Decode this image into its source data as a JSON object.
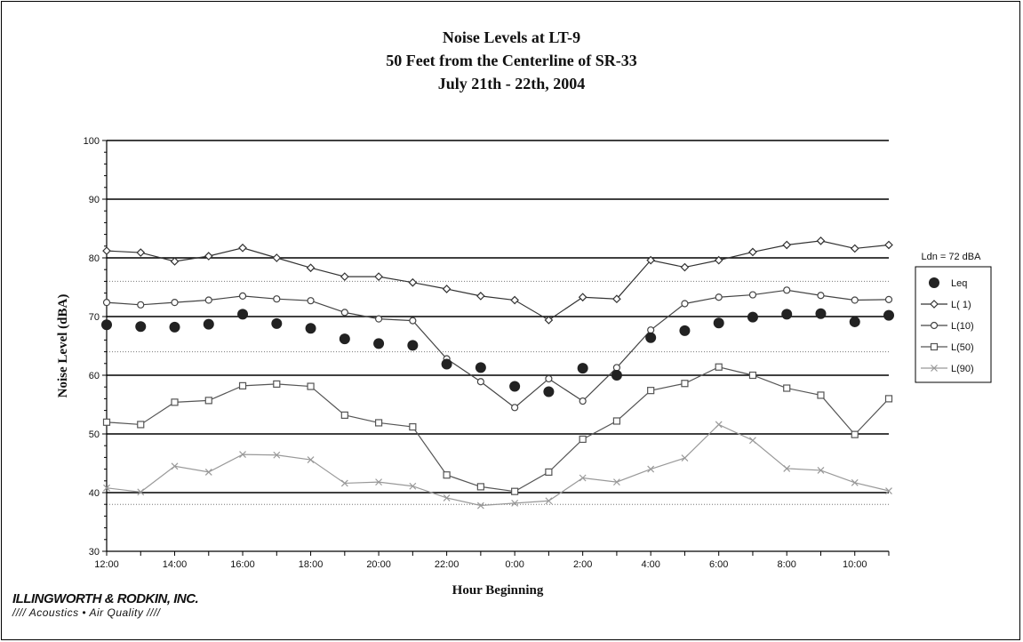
{
  "page": {
    "title_lines": [
      "Noise Levels at LT-9",
      "50 Feet from the Centerline of SR-33",
      "July 21th - 22th, 2004"
    ],
    "logo_name": "ILLINGWORTH & RODKIN, INC.",
    "logo_tagline": "//// Acoustics • Air Quality ////"
  },
  "chart_data": {
    "type": "line",
    "title": "Noise Levels at LT-9",
    "subtitle": "50 Feet from the Centerline of SR-33 / July 21th - 22th, 2004",
    "xlabel": "Hour Beginning",
    "ylabel": "Noise Level (dBA)",
    "ylim": [
      30,
      100
    ],
    "yticks": [
      30,
      40,
      50,
      60,
      70,
      80,
      90,
      100
    ],
    "x": [
      "12:00",
      "13:00",
      "14:00",
      "15:00",
      "16:00",
      "17:00",
      "18:00",
      "19:00",
      "20:00",
      "21:00",
      "22:00",
      "23:00",
      "0:00",
      "1:00",
      "2:00",
      "3:00",
      "4:00",
      "5:00",
      "6:00",
      "7:00",
      "8:00",
      "9:00",
      "10:00",
      "11:00"
    ],
    "xtick_labels": [
      "12:00",
      "14:00",
      "16:00",
      "18:00",
      "20:00",
      "22:00",
      "0:00",
      "2:00",
      "4:00",
      "6:00",
      "8:00",
      "10:00"
    ],
    "grid": "horizontal major lines at 10 dBA; dotted reference lines at 38, 64, 76 dBA",
    "legend_title": "Ldn = 72 dBA",
    "legend_position": "right",
    "series": [
      {
        "name": "Leq",
        "marker": "filled-circle",
        "line": false,
        "color": "#222222",
        "values": [
          68.6,
          68.3,
          68.2,
          68.7,
          70.4,
          68.8,
          68.0,
          66.2,
          65.4,
          65.1,
          61.9,
          61.3,
          58.1,
          57.2,
          61.2,
          60.0,
          66.4,
          67.6,
          68.9,
          69.9,
          70.4,
          70.5,
          69.1,
          70.2
        ]
      },
      {
        "name": "L( 1)",
        "marker": "diamond",
        "line": true,
        "color": "#333333",
        "values": [
          81.2,
          80.9,
          79.4,
          80.3,
          81.7,
          80.0,
          78.3,
          76.8,
          76.8,
          75.8,
          74.7,
          73.5,
          72.8,
          69.4,
          73.3,
          73.0,
          79.6,
          78.4,
          79.6,
          81.0,
          82.2,
          82.9,
          81.6,
          82.2
        ]
      },
      {
        "name": "L(10)",
        "marker": "circle",
        "line": true,
        "color": "#444444",
        "values": [
          72.4,
          72.0,
          72.4,
          72.8,
          73.5,
          73.0,
          72.7,
          70.7,
          69.6,
          69.3,
          62.8,
          58.9,
          54.5,
          59.4,
          55.6,
          61.3,
          67.7,
          72.2,
          73.3,
          73.7,
          74.5,
          73.6,
          72.8,
          72.9
        ]
      },
      {
        "name": "L(50)",
        "marker": "square",
        "line": true,
        "color": "#555555",
        "values": [
          52.0,
          51.6,
          55.4,
          55.7,
          58.2,
          58.5,
          58.1,
          53.2,
          51.9,
          51.2,
          43.0,
          41.0,
          40.2,
          43.5,
          49.1,
          52.2,
          57.4,
          58.6,
          61.4,
          60.0,
          57.8,
          56.6,
          49.9,
          56.0
        ]
      },
      {
        "name": "L(90)",
        "marker": "x",
        "line": true,
        "color": "#999999",
        "values": [
          40.8,
          40.1,
          44.5,
          43.5,
          46.5,
          46.4,
          45.6,
          41.6,
          41.8,
          41.1,
          39.1,
          37.8,
          38.2,
          38.6,
          42.5,
          41.8,
          44.0,
          45.9,
          51.6,
          48.9,
          44.1,
          43.8,
          41.7,
          40.3
        ]
      }
    ]
  }
}
